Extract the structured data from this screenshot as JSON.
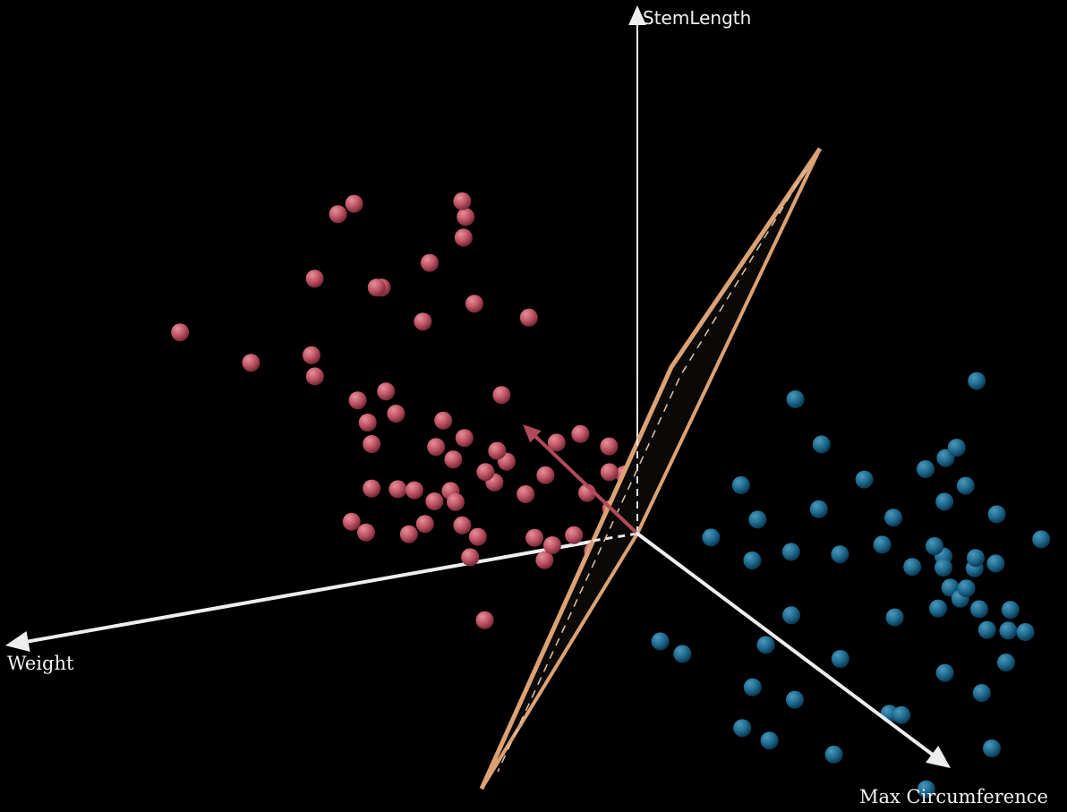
{
  "chart_data": {
    "type": "scatter",
    "projection": "3d",
    "axes": {
      "x": "Weight",
      "y": "StemLength",
      "z": "Max Circumference"
    },
    "colors": {
      "class_a": "#c05565",
      "class_b": "#1f6d92",
      "plane_edge": "#dca274",
      "plane_fill": "#0b0908",
      "normal_vector": "#b04a5a",
      "axis": "#eeeeee",
      "background": "#000000"
    },
    "legend": "none",
    "grid": false,
    "series": [
      {
        "class": "a",
        "points": [
          [
            -0.6,
            0.46,
            0.26
          ],
          [
            -0.53,
            0.6,
            0.34
          ],
          [
            -0.56,
            0.58,
            0.32
          ],
          [
            -0.46,
            0.44,
            0.2
          ],
          [
            -0.47,
            0.44,
            0.2
          ],
          [
            -0.38,
            0.38,
            0.22
          ],
          [
            -0.29,
            0.42,
            0.34
          ],
          [
            -0.19,
            0.4,
            0.42
          ],
          [
            -0.39,
            0.5,
            0.44
          ],
          [
            -0.33,
            0.55,
            0.51
          ],
          [
            -0.33,
            0.59,
            0.55
          ],
          [
            -0.34,
            0.62,
            0.58
          ],
          [
            -0.83,
            0.34,
            -0.1
          ],
          [
            -0.68,
            0.28,
            -0.18
          ],
          [
            -0.57,
            0.3,
            -0.08
          ],
          [
            -0.56,
            0.26,
            -0.11
          ],
          [
            -0.48,
            0.22,
            -0.06
          ],
          [
            -0.43,
            0.24,
            0.0
          ],
          [
            -0.46,
            0.18,
            -0.06
          ],
          [
            -0.41,
            0.2,
            0.0
          ],
          [
            -0.32,
            0.19,
            0.04
          ],
          [
            -0.21,
            0.24,
            0.1
          ],
          [
            -0.45,
            0.14,
            -0.08
          ],
          [
            -0.33,
            0.14,
            0.0
          ],
          [
            -0.28,
            0.16,
            0.06
          ],
          [
            -0.22,
            0.14,
            0.11
          ],
          [
            -0.3,
            0.12,
            0.04
          ],
          [
            -0.24,
            0.1,
            0.08
          ],
          [
            -0.2,
            0.12,
            0.1
          ],
          [
            -0.13,
            0.1,
            0.17
          ],
          [
            -0.11,
            0.16,
            0.19
          ],
          [
            -0.07,
            0.18,
            0.26
          ],
          [
            -0.05,
            0.07,
            0.2
          ],
          [
            -0.01,
            0.11,
            0.24
          ],
          [
            -0.45,
            0.06,
            -0.08
          ],
          [
            -0.4,
            0.06,
            -0.06
          ],
          [
            -0.37,
            0.06,
            -0.03
          ],
          [
            -0.33,
            0.04,
            -0.03
          ],
          [
            -0.3,
            0.06,
            -0.01
          ],
          [
            -0.29,
            0.04,
            -0.01
          ],
          [
            -0.16,
            0.06,
            0.08
          ],
          [
            -0.22,
            0.08,
            0.06
          ],
          [
            -0.49,
            0.0,
            -0.08
          ],
          [
            -0.46,
            -0.02,
            -0.09
          ],
          [
            -0.38,
            -0.02,
            -0.04
          ],
          [
            -0.35,
            0.0,
            -0.02
          ],
          [
            -0.28,
            0.0,
            0.02
          ],
          [
            -0.25,
            -0.02,
            0.03
          ],
          [
            -0.14,
            -0.02,
            0.06
          ],
          [
            -0.11,
            -0.03,
            0.11
          ],
          [
            -0.07,
            -0.01,
            0.14
          ],
          [
            0.0,
            0.04,
            0.18
          ],
          [
            -0.03,
            -0.04,
            0.12
          ],
          [
            -0.03,
            -0.1,
            0.09
          ],
          [
            -0.26,
            -0.06,
            -0.02
          ],
          [
            -0.12,
            -0.06,
            0.06
          ],
          [
            -0.22,
            -0.18,
            -0.12
          ],
          [
            0.0,
            0.15,
            0.14
          ],
          [
            0.03,
            0.1,
            0.15
          ]
        ]
      },
      {
        "class": "b",
        "points": [
          [
            0.33,
            0.26,
            0.53
          ],
          [
            0.68,
            0.3,
            0.64
          ],
          [
            0.38,
            0.18,
            0.55
          ],
          [
            0.46,
            0.12,
            0.6
          ],
          [
            0.58,
            0.14,
            0.62
          ],
          [
            0.62,
            0.16,
            0.62
          ],
          [
            0.64,
            0.18,
            0.64
          ],
          [
            0.23,
            0.1,
            0.45
          ],
          [
            0.26,
            0.04,
            0.48
          ],
          [
            0.38,
            0.06,
            0.5
          ],
          [
            0.52,
            0.05,
            0.58
          ],
          [
            0.62,
            0.08,
            0.6
          ],
          [
            0.66,
            0.11,
            0.62
          ],
          [
            0.72,
            0.06,
            0.64
          ],
          [
            0.8,
            0.02,
            0.72
          ],
          [
            0.62,
            -0.02,
            0.58
          ],
          [
            0.68,
            -0.02,
            0.62
          ],
          [
            0.18,
            0.0,
            0.36
          ],
          [
            0.26,
            -0.04,
            0.38
          ],
          [
            0.33,
            -0.02,
            0.45
          ],
          [
            0.42,
            -0.02,
            0.52
          ],
          [
            0.5,
            0.0,
            0.56
          ],
          [
            0.6,
            0.0,
            0.6
          ],
          [
            0.56,
            -0.04,
            0.56
          ],
          [
            0.62,
            -0.04,
            0.58
          ],
          [
            0.68,
            -0.04,
            0.6
          ],
          [
            0.72,
            -0.03,
            0.62
          ],
          [
            0.88,
            -0.06,
            0.72
          ],
          [
            0.64,
            -0.08,
            0.52
          ],
          [
            0.67,
            -0.08,
            0.54
          ],
          [
            0.66,
            -0.1,
            0.52
          ],
          [
            0.62,
            -0.12,
            0.48
          ],
          [
            0.7,
            -0.12,
            0.5
          ],
          [
            0.76,
            -0.12,
            0.52
          ],
          [
            0.72,
            -0.16,
            0.46
          ],
          [
            0.76,
            -0.16,
            0.48
          ],
          [
            0.79,
            -0.16,
            0.52
          ],
          [
            0.54,
            -0.14,
            0.42
          ],
          [
            0.34,
            -0.14,
            0.36
          ],
          [
            0.3,
            -0.2,
            0.26
          ],
          [
            0.44,
            -0.22,
            0.34
          ],
          [
            0.64,
            -0.24,
            0.42
          ],
          [
            0.76,
            -0.22,
            0.44
          ],
          [
            0.72,
            -0.28,
            0.36
          ],
          [
            0.28,
            -0.28,
            0.2
          ],
          [
            0.36,
            -0.3,
            0.24
          ],
          [
            0.54,
            -0.32,
            0.32
          ],
          [
            0.56,
            -0.32,
            0.36
          ],
          [
            0.74,
            -0.38,
            0.36
          ],
          [
            0.27,
            -0.36,
            0.1
          ],
          [
            0.32,
            -0.38,
            0.14
          ],
          [
            0.44,
            -0.4,
            0.22
          ],
          [
            0.62,
            -0.46,
            0.26
          ],
          [
            0.1,
            -0.2,
            0.16
          ],
          [
            0.14,
            -0.22,
            0.2
          ]
        ]
      }
    ]
  }
}
